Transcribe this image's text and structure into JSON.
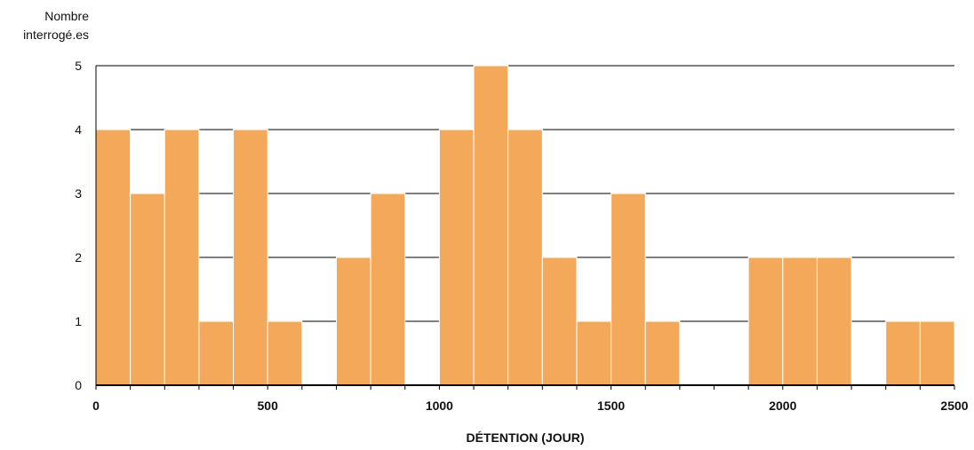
{
  "chart_data": {
    "type": "bar",
    "ylabel_lines": [
      "Nombre",
      "interrogé.es"
    ],
    "xlabel": "DÉTENTION (JOUR)",
    "xlim": [
      0,
      2500
    ],
    "ylim": [
      0,
      5
    ],
    "bin_width": 100,
    "x_ticks": [
      "0",
      "500",
      "1000",
      "1500",
      "2000",
      "2500"
    ],
    "y_ticks": [
      "0",
      "1",
      "2",
      "3",
      "4",
      "5"
    ],
    "grid": true,
    "bar_color": "#f4a85a",
    "bins": [
      {
        "start": 0,
        "end": 100,
        "value": 4
      },
      {
        "start": 100,
        "end": 200,
        "value": 3
      },
      {
        "start": 200,
        "end": 300,
        "value": 4
      },
      {
        "start": 300,
        "end": 400,
        "value": 1
      },
      {
        "start": 400,
        "end": 500,
        "value": 4
      },
      {
        "start": 500,
        "end": 600,
        "value": 1
      },
      {
        "start": 600,
        "end": 700,
        "value": 0
      },
      {
        "start": 700,
        "end": 800,
        "value": 2
      },
      {
        "start": 800,
        "end": 900,
        "value": 3
      },
      {
        "start": 900,
        "end": 1000,
        "value": 0
      },
      {
        "start": 1000,
        "end": 1100,
        "value": 4
      },
      {
        "start": 1100,
        "end": 1200,
        "value": 5
      },
      {
        "start": 1200,
        "end": 1300,
        "value": 4
      },
      {
        "start": 1300,
        "end": 1400,
        "value": 2
      },
      {
        "start": 1400,
        "end": 1500,
        "value": 1
      },
      {
        "start": 1500,
        "end": 1600,
        "value": 3
      },
      {
        "start": 1600,
        "end": 1700,
        "value": 1
      },
      {
        "start": 1700,
        "end": 1800,
        "value": 0
      },
      {
        "start": 1800,
        "end": 1900,
        "value": 0
      },
      {
        "start": 1900,
        "end": 2000,
        "value": 2
      },
      {
        "start": 2000,
        "end": 2100,
        "value": 2
      },
      {
        "start": 2100,
        "end": 2200,
        "value": 2
      },
      {
        "start": 2200,
        "end": 2300,
        "value": 0
      },
      {
        "start": 2300,
        "end": 2400,
        "value": 1
      },
      {
        "start": 2400,
        "end": 2500,
        "value": 1
      }
    ]
  }
}
